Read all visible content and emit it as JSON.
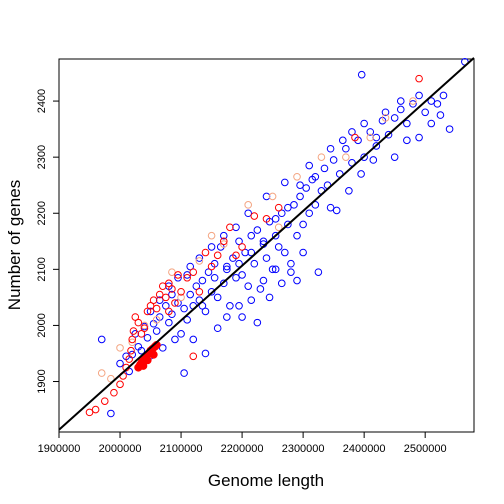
{
  "chart_data": {
    "type": "scatter",
    "title": "",
    "xlabel": "Genome length",
    "ylabel": "Number of genes",
    "xlim": [
      1900000,
      2580000
    ],
    "ylim": [
      1810000,
      2475
    ],
    "xticks": [
      1900000,
      2000000,
      2100000,
      2200000,
      2300000,
      2400000,
      2500000
    ],
    "xtick_labels": [
      "1900000",
      "2000000",
      "2100000",
      "2200000",
      "2300000",
      "2400000",
      "2500000"
    ],
    "yticks": [
      1900,
      2000,
      2100,
      2200,
      2300,
      2400
    ],
    "ytick_labels": [
      "1900",
      "2000",
      "2100",
      "2200",
      "2300",
      "2400"
    ],
    "grid": false,
    "legend": "none",
    "fit_line": {
      "x": [
        1900000,
        2580000
      ],
      "y": [
        1814,
        2477
      ],
      "color": "#000000"
    },
    "colors": {
      "series_1": "#0000ff",
      "series_2": "#ff0000",
      "series_3": "#f4a582",
      "series_4": "#ff0000"
    },
    "series": [
      {
        "marker": "open-circle",
        "color": "#0000ff",
        "points": [
          [
            1985000,
            1843
          ],
          [
            1970000,
            1975
          ],
          [
            2000000,
            1932
          ],
          [
            2010000,
            1945
          ],
          [
            2015000,
            1918
          ],
          [
            2020000,
            1948
          ],
          [
            2025000,
            1985
          ],
          [
            2030000,
            1962
          ],
          [
            2035000,
            1955
          ],
          [
            2040000,
            1998
          ],
          [
            2045000,
            1978
          ],
          [
            2050000,
            1946
          ],
          [
            2055000,
            2003
          ],
          [
            2060000,
            1990
          ],
          [
            2065000,
            2015
          ],
          [
            2070000,
            1960
          ],
          [
            2075000,
            2035
          ],
          [
            2080000,
            2005
          ],
          [
            2085000,
            2020
          ],
          [
            2090000,
            1975
          ],
          [
            2095000,
            2040
          ],
          [
            2100000,
            1985
          ],
          [
            2105000,
            2030
          ],
          [
            2110000,
            2010
          ],
          [
            2115000,
            2055
          ],
          [
            2120000,
            2035
          ],
          [
            2125000,
            2070
          ],
          [
            2130000,
            2045
          ],
          [
            2135000,
            2080
          ],
          [
            2140000,
            2025
          ],
          [
            2145000,
            2095
          ],
          [
            2150000,
            2060
          ],
          [
            2155000,
            2110
          ],
          [
            2160000,
            2050
          ],
          [
            2165000,
            2140
          ],
          [
            2170000,
            2075
          ],
          [
            2175000,
            2105
          ],
          [
            2180000,
            2035
          ],
          [
            2185000,
            2120
          ],
          [
            2190000,
            2085
          ],
          [
            2195000,
            2150
          ],
          [
            2200000,
            2090
          ],
          [
            2205000,
            2130
          ],
          [
            2210000,
            2070
          ],
          [
            2215000,
            2160
          ],
          [
            2220000,
            2110
          ],
          [
            2225000,
            2170
          ],
          [
            2230000,
            2065
          ],
          [
            2235000,
            2145
          ],
          [
            2240000,
            2120
          ],
          [
            2245000,
            2185
          ],
          [
            2250000,
            2100
          ],
          [
            2255000,
            2160
          ],
          [
            2260000,
            2140
          ],
          [
            2265000,
            2200
          ],
          [
            2270000,
            2130
          ],
          [
            2275000,
            2180
          ],
          [
            2280000,
            2110
          ],
          [
            2285000,
            2215
          ],
          [
            2290000,
            2160
          ],
          [
            2295000,
            2230
          ],
          [
            2300000,
            2180
          ],
          [
            2305000,
            2245
          ],
          [
            2310000,
            2200
          ],
          [
            2315000,
            2260
          ],
          [
            2320000,
            2215
          ],
          [
            2325000,
            2095
          ],
          [
            2330000,
            2240
          ],
          [
            2335000,
            2280
          ],
          [
            2340000,
            2250
          ],
          [
            2345000,
            2210
          ],
          [
            2350000,
            2295
          ],
          [
            2360000,
            2270
          ],
          [
            2370000,
            2315
          ],
          [
            2380000,
            2290
          ],
          [
            2390000,
            2330
          ],
          [
            2400000,
            2300
          ],
          [
            2410000,
            2345
          ],
          [
            2420000,
            2320
          ],
          [
            2430000,
            2365
          ],
          [
            2440000,
            2340
          ],
          [
            2450000,
            2370
          ],
          [
            2460000,
            2385
          ],
          [
            2470000,
            2360
          ],
          [
            2480000,
            2395
          ],
          [
            2490000,
            2410
          ],
          [
            2500000,
            2380
          ],
          [
            2510000,
            2400
          ],
          [
            2520000,
            2395
          ],
          [
            2530000,
            2410
          ],
          [
            2540000,
            2350
          ],
          [
            2565000,
            2470
          ],
          [
            2396000,
            2447
          ],
          [
            2380000,
            2345
          ],
          [
            2420000,
            2335
          ],
          [
            2105000,
            1915
          ],
          [
            2140000,
            1950
          ],
          [
            2120000,
            1975
          ],
          [
            2160000,
            1995
          ],
          [
            2175000,
            2015
          ],
          [
            2195000,
            2035
          ],
          [
            2215000,
            2045
          ],
          [
            2235000,
            2080
          ],
          [
            2255000,
            2100
          ],
          [
            2280000,
            2095
          ],
          [
            2300000,
            2130
          ],
          [
            2355000,
            2205
          ],
          [
            2375000,
            2240
          ],
          [
            2395000,
            2270
          ],
          [
            2415000,
            2295
          ],
          [
            2450000,
            2300
          ],
          [
            2470000,
            2330
          ],
          [
            2490000,
            2335
          ],
          [
            2510000,
            2360
          ],
          [
            2525000,
            2375
          ],
          [
            2085000,
            2055
          ],
          [
            2110000,
            2090
          ],
          [
            2130000,
            2120
          ],
          [
            2150000,
            2140
          ],
          [
            2170000,
            2160
          ],
          [
            2190000,
            2175
          ],
          [
            2210000,
            2200
          ],
          [
            2240000,
            2230
          ],
          [
            2270000,
            2255
          ],
          [
            2310000,
            2285
          ],
          [
            2345000,
            2315
          ],
          [
            2365000,
            2330
          ],
          [
            2400000,
            2360
          ],
          [
            2435000,
            2380
          ],
          [
            2460000,
            2400
          ],
          [
            2200000,
            2015
          ],
          [
            2225000,
            2005
          ],
          [
            2245000,
            2050
          ],
          [
            2265000,
            2075
          ],
          [
            2290000,
            2080
          ],
          [
            2050000,
            2025
          ],
          [
            2065000,
            2045
          ],
          [
            2080000,
            2070
          ],
          [
            2095000,
            2085
          ],
          [
            2115000,
            2105
          ],
          [
            2135000,
            2035
          ],
          [
            2155000,
            2085
          ],
          [
            2175000,
            2100
          ],
          [
            2195000,
            2110
          ],
          [
            2215000,
            2130
          ],
          [
            2235000,
            2150
          ],
          [
            2255000,
            2190
          ],
          [
            2275000,
            2210
          ],
          [
            2295000,
            2250
          ],
          [
            2320000,
            2265
          ]
        ]
      },
      {
        "marker": "filled-circle",
        "color": "#ff0000",
        "points": [
          [
            2030000,
            1925
          ],
          [
            2033000,
            1930
          ],
          [
            2036000,
            1935
          ],
          [
            2040000,
            1940
          ],
          [
            2043000,
            1945
          ],
          [
            2047000,
            1950
          ],
          [
            2050000,
            1955
          ],
          [
            2053000,
            1958
          ],
          [
            2057000,
            1962
          ],
          [
            2060000,
            1965
          ],
          [
            2045000,
            1938
          ],
          [
            2038000,
            1928
          ],
          [
            2055000,
            1948
          ]
        ]
      },
      {
        "marker": "open-circle",
        "color": "#f4a582",
        "points": [
          [
            1970000,
            1915
          ],
          [
            1985000,
            1905
          ],
          [
            2000000,
            1960
          ],
          [
            2020000,
            1970
          ],
          [
            2040000,
            2000
          ],
          [
            2060000,
            2010
          ],
          [
            2085000,
            2095
          ],
          [
            2100000,
            2050
          ],
          [
            2130000,
            2115
          ],
          [
            2150000,
            2160
          ],
          [
            2170000,
            2145
          ],
          [
            2210000,
            2215
          ],
          [
            2250000,
            2230
          ],
          [
            2290000,
            2265
          ],
          [
            2330000,
            2300
          ],
          [
            2370000,
            2300
          ],
          [
            2410000,
            2335
          ],
          [
            2435000,
            2370
          ],
          [
            2480000,
            2400
          ],
          [
            2260000,
            2175
          ]
        ]
      },
      {
        "marker": "open-circle",
        "color": "#ff0000",
        "points": [
          [
            1950000,
            1845
          ],
          [
            1960000,
            1850
          ],
          [
            1975000,
            1865
          ],
          [
            1990000,
            1880
          ],
          [
            2000000,
            1895
          ],
          [
            2005000,
            1910
          ],
          [
            2010000,
            1925
          ],
          [
            2015000,
            1940
          ],
          [
            2018000,
            1955
          ],
          [
            2020000,
            1975
          ],
          [
            2022000,
            1990
          ],
          [
            2025000,
            2015
          ],
          [
            2030000,
            2005
          ],
          [
            2035000,
            1985
          ],
          [
            2040000,
            1995
          ],
          [
            2045000,
            2025
          ],
          [
            2050000,
            2035
          ],
          [
            2055000,
            2045
          ],
          [
            2060000,
            2030
          ],
          [
            2065000,
            2055
          ],
          [
            2070000,
            2070
          ],
          [
            2075000,
            2050
          ],
          [
            2080000,
            2075
          ],
          [
            2085000,
            2065
          ],
          [
            2090000,
            2040
          ],
          [
            2100000,
            2060
          ],
          [
            2110000,
            2085
          ],
          [
            2120000,
            2095
          ],
          [
            2130000,
            2060
          ],
          [
            2140000,
            2130
          ],
          [
            2150000,
            2105
          ],
          [
            2160000,
            2125
          ],
          [
            2170000,
            2150
          ],
          [
            2180000,
            2175
          ],
          [
            2190000,
            2125
          ],
          [
            2200000,
            2140
          ],
          [
            2220000,
            2195
          ],
          [
            2240000,
            2190
          ],
          [
            2260000,
            2210
          ],
          [
            2385000,
            2335
          ],
          [
            2490000,
            2440
          ],
          [
            2120000,
            1945
          ],
          [
            2080000,
            2025
          ],
          [
            2095000,
            2090
          ]
        ]
      }
    ]
  }
}
